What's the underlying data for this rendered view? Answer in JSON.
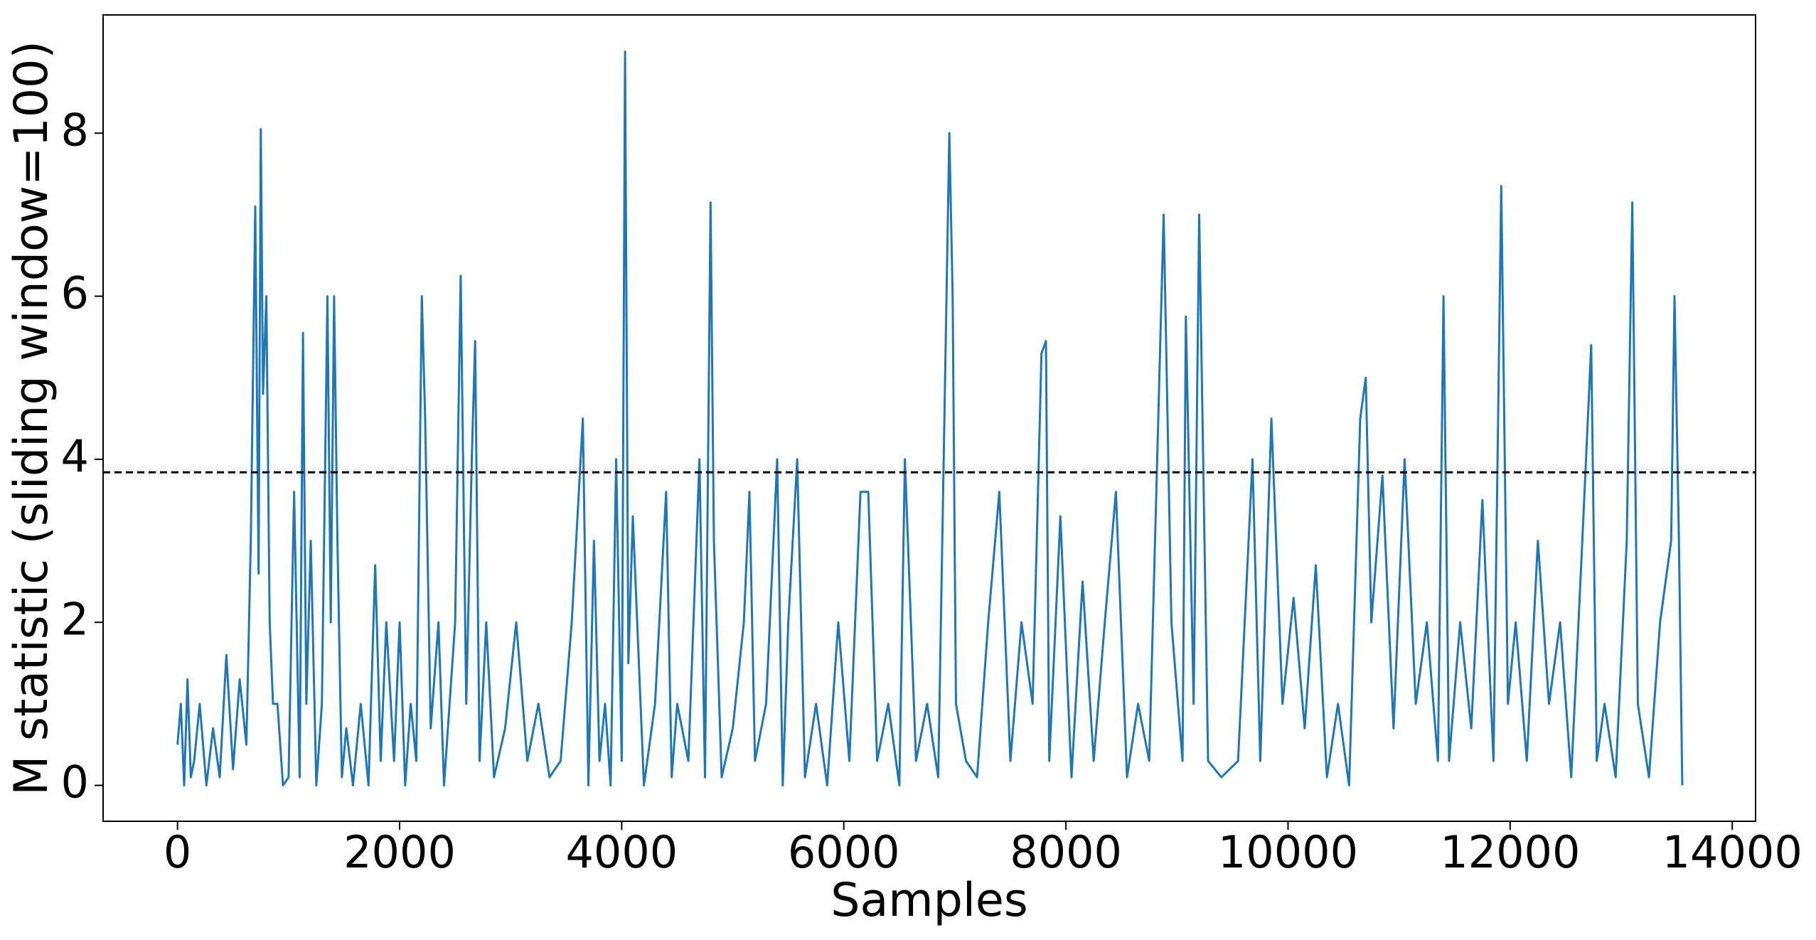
{
  "chart_data": {
    "type": "line",
    "x_label": "Samples",
    "y_label": "M statistic (sliding window=100)",
    "x": [
      0,
      30,
      60,
      90,
      120,
      150,
      200,
      260,
      320,
      380,
      440,
      500,
      560,
      620,
      660,
      700,
      730,
      750,
      770,
      800,
      830,
      860,
      900,
      950,
      1000,
      1050,
      1100,
      1130,
      1160,
      1200,
      1250,
      1300,
      1350,
      1380,
      1410,
      1440,
      1480,
      1520,
      1580,
      1650,
      1720,
      1780,
      1830,
      1880,
      1950,
      2000,
      2050,
      2100,
      2150,
      2200,
      2230,
      2280,
      2350,
      2400,
      2450,
      2500,
      2550,
      2600,
      2650,
      2680,
      2720,
      2780,
      2850,
      2950,
      3050,
      3150,
      3250,
      3350,
      3450,
      3550,
      3650,
      3700,
      3750,
      3800,
      3850,
      3900,
      3950,
      4000,
      4030,
      4060,
      4100,
      4200,
      4300,
      4400,
      4450,
      4500,
      4600,
      4700,
      4750,
      4800,
      4830,
      4900,
      5000,
      5100,
      5150,
      5200,
      5300,
      5400,
      5450,
      5500,
      5580,
      5650,
      5750,
      5850,
      5950,
      6050,
      6150,
      6220,
      6300,
      6400,
      6500,
      6550,
      6650,
      6750,
      6850,
      6950,
      6980,
      7010,
      7100,
      7200,
      7300,
      7400,
      7500,
      7600,
      7700,
      7780,
      7820,
      7850,
      7950,
      8050,
      8150,
      8250,
      8350,
      8450,
      8550,
      8650,
      8750,
      8880,
      8950,
      9050,
      9080,
      9150,
      9200,
      9280,
      9400,
      9550,
      9680,
      9750,
      9850,
      9950,
      10050,
      10150,
      10250,
      10350,
      10450,
      10550,
      10650,
      10700,
      10750,
      10850,
      10950,
      11050,
      11150,
      11250,
      11350,
      11400,
      11450,
      11550,
      11650,
      11750,
      11850,
      11920,
      11980,
      12050,
      12150,
      12250,
      12350,
      12450,
      12550,
      12650,
      12730,
      12780,
      12850,
      12950,
      13050,
      13100,
      13150,
      13250,
      13350,
      13450,
      13480,
      13520,
      13550
    ],
    "series": [
      {
        "color": "#1f77b4",
        "values": [
          0.5,
          1.0,
          0,
          1.3,
          0.1,
          0.3,
          1.0,
          0,
          0.7,
          0.1,
          1.6,
          0.2,
          1.3,
          0.5,
          3.0,
          7.1,
          2.6,
          8.05,
          4.8,
          6.0,
          2.0,
          1.0,
          1.0,
          0,
          0.1,
          3.6,
          0.1,
          5.55,
          1.0,
          3.0,
          0,
          1.0,
          6.0,
          2.0,
          6.0,
          3.0,
          0.1,
          0.7,
          0,
          1.0,
          0,
          2.7,
          0.3,
          2.0,
          0.3,
          2.0,
          0,
          1.0,
          0.3,
          6.0,
          4.5,
          0.7,
          2.0,
          0,
          1.0,
          2.0,
          6.25,
          1.0,
          4.0,
          5.45,
          0.3,
          2.0,
          0.1,
          0.7,
          2.0,
          0.3,
          1.0,
          0.1,
          0.3,
          2.0,
          4.5,
          0,
          3.0,
          0.3,
          1.0,
          0,
          4.0,
          0.3,
          9.0,
          1.5,
          3.3,
          0,
          1.0,
          3.6,
          0.1,
          1.0,
          0.3,
          4.0,
          0.1,
          7.15,
          3.0,
          0.1,
          0.7,
          2.0,
          3.6,
          0.3,
          1.0,
          4.0,
          0,
          2.0,
          4.0,
          0.1,
          1.0,
          0,
          2.0,
          0.3,
          3.6,
          3.6,
          0.3,
          1.0,
          0,
          4.0,
          0.3,
          1.0,
          0.1,
          8.0,
          6.0,
          1.0,
          0.3,
          0.1,
          2.0,
          3.6,
          0.3,
          2.0,
          1.0,
          5.3,
          5.45,
          0.3,
          3.3,
          0.1,
          2.5,
          0.3,
          2.0,
          3.6,
          0.1,
          1.0,
          0.3,
          7.0,
          2.0,
          0.3,
          5.75,
          1.0,
          7.0,
          0.3,
          0.1,
          0.3,
          4.0,
          0.3,
          4.5,
          1.0,
          2.3,
          0.7,
          2.7,
          0.1,
          1.0,
          0,
          4.5,
          5.0,
          2.0,
          3.8,
          0.7,
          4.0,
          1.0,
          2.0,
          0.3,
          6.0,
          0.3,
          2.0,
          0.7,
          3.5,
          0.3,
          7.35,
          1.0,
          2.0,
          0.3,
          3.0,
          1.0,
          2.0,
          0.1,
          3.0,
          5.4,
          0.3,
          1.0,
          0.1,
          3.0,
          7.15,
          1.0,
          0.1,
          2.0,
          3.0,
          6.0,
          3.0,
          0
        ]
      }
    ],
    "threshold": {
      "value": 3.84,
      "color": "#000000",
      "dashed": true
    },
    "xlim": [
      -670,
      14210
    ],
    "ylim": [
      -0.44,
      9.45
    ],
    "xticks": [
      0,
      2000,
      4000,
      6000,
      8000,
      10000,
      12000,
      14000
    ],
    "yticks": [
      0,
      2,
      4,
      6,
      8
    ],
    "grid": false
  }
}
